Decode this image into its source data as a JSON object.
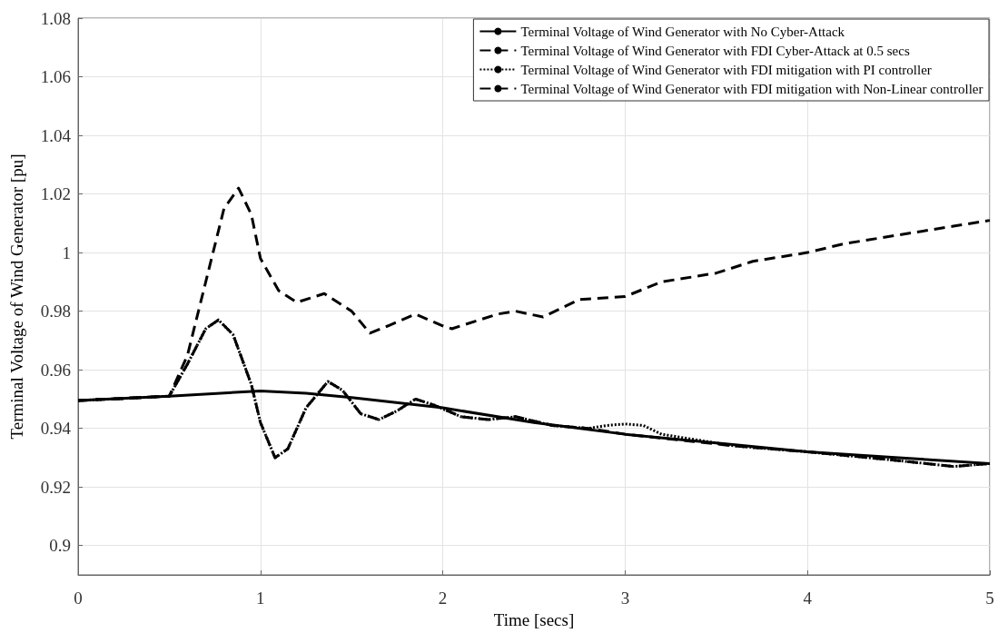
{
  "chart_data": {
    "type": "line",
    "xlabel": "Time [secs]",
    "ylabel": "Terminal Voltage of Wind Generator [pu]",
    "xlim": [
      0,
      5
    ],
    "xticks": [
      0,
      1,
      2,
      3,
      4,
      5
    ],
    "ylim": [
      0.89,
      1.08
    ],
    "yticks": [
      0.9,
      0.92,
      0.94,
      0.96,
      0.98,
      1,
      1.02,
      1.04,
      1.06,
      1.08
    ],
    "grid": true,
    "legend": "top right",
    "marker": "none",
    "series": [
      {
        "name": "Terminal Voltage of Wind Generator with No Cyber-Attack",
        "color": "#000000",
        "line_style": "solid",
        "x": [
          0,
          0.5,
          1,
          1.25,
          1.5,
          2,
          2.5,
          3,
          3.5,
          4,
          4.5,
          5
        ],
        "values": [
          0.9495,
          0.951,
          0.9528,
          0.952,
          0.9505,
          0.947,
          0.942,
          0.938,
          0.935,
          0.932,
          0.93,
          0.928
        ]
      },
      {
        "name": "Terminal Voltage of Wind Generator with FDI Cyber-Attack at 0.5 secs",
        "color": "#000000",
        "line_style": "dashed",
        "x": [
          0,
          0.5,
          0.6,
          0.7,
          0.8,
          0.88,
          0.95,
          1,
          1.1,
          1.2,
          1.35,
          1.5,
          1.6,
          1.7,
          1.85,
          2,
          2.05,
          2.3,
          2.4,
          2.55,
          2.75,
          3,
          3.2,
          3.5,
          3.7,
          4,
          4.2,
          4.5,
          4.8,
          5
        ],
        "values": [
          0.9495,
          0.951,
          0.965,
          0.99,
          1.015,
          1.022,
          1.013,
          0.998,
          0.987,
          0.983,
          0.986,
          0.98,
          0.9725,
          0.975,
          0.979,
          0.975,
          0.974,
          0.979,
          0.98,
          0.978,
          0.984,
          0.985,
          0.99,
          0.993,
          0.997,
          1,
          1.003,
          1.006,
          1.009,
          1.011
        ]
      },
      {
        "name": "Terminal Voltage of Wind Generator with FDI mitigation with PI controller",
        "color": "#000000",
        "line_style": "dotted",
        "x": [
          0,
          0.5,
          0.6,
          0.7,
          0.77,
          0.85,
          0.95,
          1,
          1.08,
          1.15,
          1.25,
          1.37,
          1.45,
          1.55,
          1.65,
          1.75,
          1.85,
          1.95,
          2.1,
          2.25,
          2.4,
          2.6,
          2.8,
          2.9,
          3,
          3.1,
          3.2,
          3.4,
          3.6,
          4,
          4.5,
          4.8,
          5
        ],
        "values": [
          0.9495,
          0.951,
          0.962,
          0.974,
          0.977,
          0.972,
          0.955,
          0.942,
          0.93,
          0.933,
          0.947,
          0.956,
          0.953,
          0.945,
          0.943,
          0.946,
          0.95,
          0.948,
          0.944,
          0.943,
          0.944,
          0.941,
          0.94,
          0.941,
          0.9415,
          0.941,
          0.938,
          0.936,
          0.934,
          0.932,
          0.929,
          0.927,
          0.928
        ]
      },
      {
        "name": "Terminal Voltage of Wind Generator with FDI mitigation with Non-Linear controller",
        "color": "#000000",
        "line_style": "dashed",
        "x": [
          0,
          0.5,
          0.6,
          0.7,
          0.77,
          0.85,
          0.95,
          1,
          1.08,
          1.15,
          1.25,
          1.37,
          1.45,
          1.55,
          1.65,
          1.75,
          1.85,
          1.95,
          2.1,
          2.25,
          2.4,
          2.6,
          2.8,
          3,
          3.3,
          3.6,
          4,
          4.5,
          4.8,
          5
        ],
        "values": [
          0.9495,
          0.951,
          0.962,
          0.974,
          0.977,
          0.972,
          0.955,
          0.942,
          0.93,
          0.933,
          0.947,
          0.956,
          0.953,
          0.945,
          0.943,
          0.946,
          0.95,
          0.948,
          0.944,
          0.943,
          0.944,
          0.941,
          0.94,
          0.938,
          0.936,
          0.934,
          0.932,
          0.929,
          0.927,
          0.928
        ]
      }
    ]
  }
}
